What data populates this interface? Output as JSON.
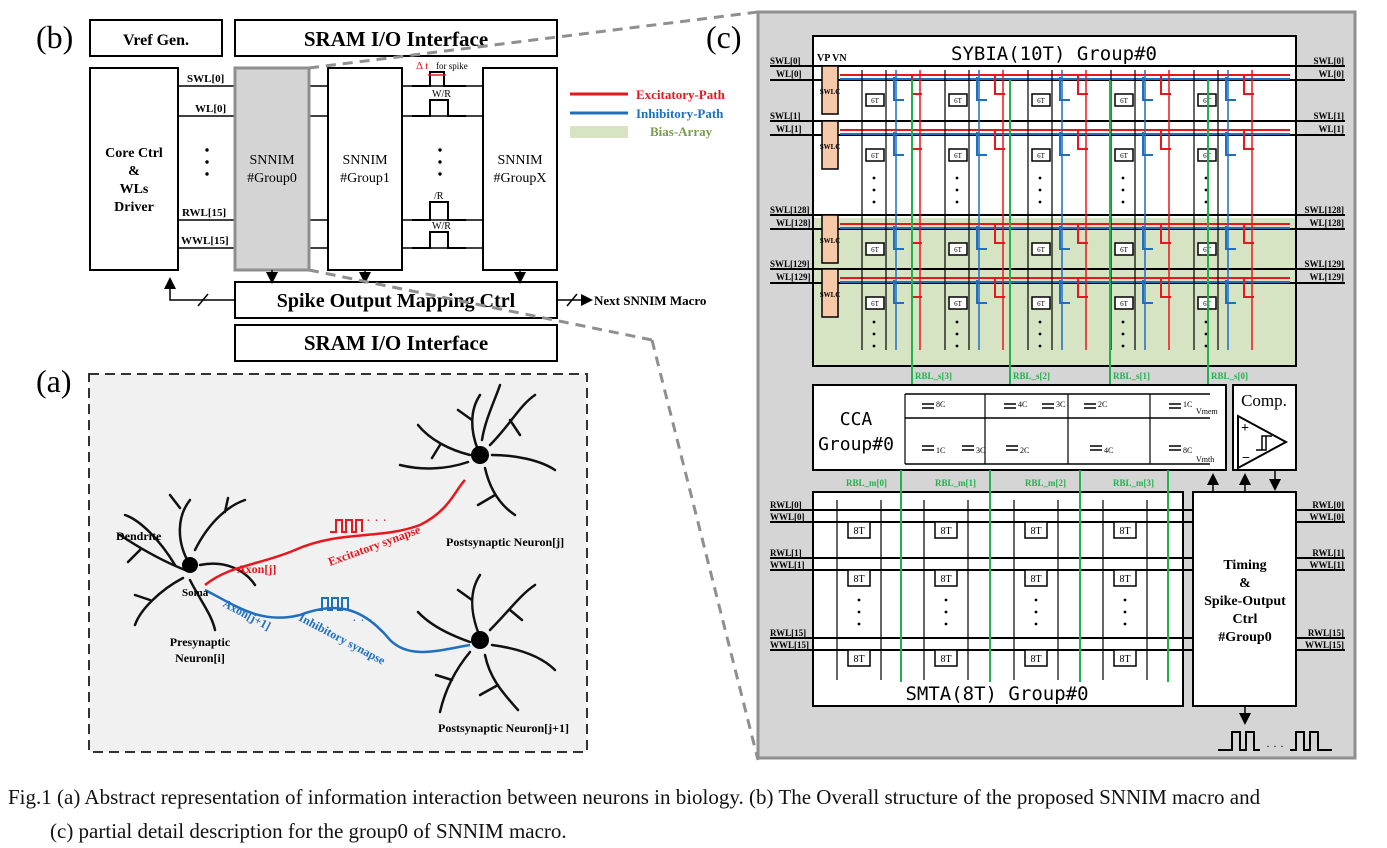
{
  "panel_b": {
    "label": "(b)",
    "vref": "Vref Gen.",
    "sram_top": "SRAM I/O Interface",
    "sram_bottom": "SRAM I/O Interface",
    "core_ctrl": [
      "Core Ctrl",
      "&",
      "WLs",
      "Driver"
    ],
    "wl_labels": [
      "SWL[0]",
      "WL[0]",
      "RWL[15]",
      "WWL[15]"
    ],
    "groups": [
      {
        "line1": "SNNIM",
        "line2": "#Group0"
      },
      {
        "line1": "SNNIM",
        "line2": "#Group1"
      },
      {
        "line1": "SNNIM",
        "line2": "#GroupX"
      }
    ],
    "spike_ctrl": "Spike Output Mapping Ctrl",
    "next_macro": "Next SNNIM Macro",
    "for_spike": "for spike",
    "delta_t": "Δ t",
    "wr1": "W/R",
    "r": "/R",
    "wr2": "W/R"
  },
  "legend": {
    "items": [
      {
        "label": "Excitatory-Path",
        "color": "#e8161d"
      },
      {
        "label": "Inhibitory-Path",
        "color": "#1f6fbf"
      },
      {
        "label": "Bias-Array",
        "color": "#d7e4c4",
        "text_color": "#7a9a4c"
      }
    ]
  },
  "panel_a": {
    "label": "(a)",
    "dendrite": "Dendrite",
    "soma": "Soma",
    "pre1": "Presynaptic",
    "pre2": "Neuron[i]",
    "axon_j": "Axon[j]",
    "axon_j1": "Axon[j+1]",
    "exc": "Excitatory synapse",
    "inh": "Inhibitory synapse",
    "post_j": "Postsynaptic Neuron[j]",
    "post_j1": "Postsynaptic Neuron[j+1]"
  },
  "panel_c": {
    "label": "(c)",
    "sybia_title": "SYBIA(10T) Group#0",
    "vp_vn": "VP VN",
    "swlc": "SWLC",
    "cell_6t": "6T",
    "row_labels": [
      {
        "swl": "SWL[0]",
        "wl": "WL[0]"
      },
      {
        "swl": "SWL[1]",
        "wl": "WL[1]"
      },
      {
        "swl": "SWL[128]",
        "wl": "WL[128]"
      },
      {
        "swl": "SWL[129]",
        "wl": "WL[129]"
      }
    ],
    "rbl_s": [
      "RBL_s[3]",
      "RBL_s[2]",
      "RBL_s[1]",
      "RBL_s[0]"
    ],
    "cca": [
      "CCA",
      "Group#0"
    ],
    "caps_top": [
      "8C",
      "4C",
      "3C",
      "2C",
      "1C"
    ],
    "caps_bottom": [
      "1C",
      "3C",
      "2C",
      "4C",
      "8C"
    ],
    "vmem": "Vmem",
    "vmth": "Vmth",
    "comp": "Comp.",
    "rbl_m": [
      "RBL_m[0]",
      "RBL_m[1]",
      "RBL_m[2]",
      "RBL_m[3]"
    ],
    "smta_rows": [
      {
        "rwl": "RWL[0]",
        "wwl": "WWL[0]"
      },
      {
        "rwl": "RWL[1]",
        "wwl": "WWL[1]"
      },
      {
        "rwl": "RWL[15]",
        "wwl": "WWL[15]"
      }
    ],
    "cell_8t": "8T",
    "smta_title": "SMTA(8T) Group#0",
    "timing": [
      "Timing",
      "&",
      "Spike-Output",
      "Ctrl",
      "#Group0"
    ]
  },
  "caption": {
    "line1": "Fig.1 (a) Abstract representation of information interaction between neurons in biology. (b) The Overall structure of the proposed SNNIM macro and",
    "line2": "(c) partial detail description for the group0 of SNNIM macro."
  }
}
